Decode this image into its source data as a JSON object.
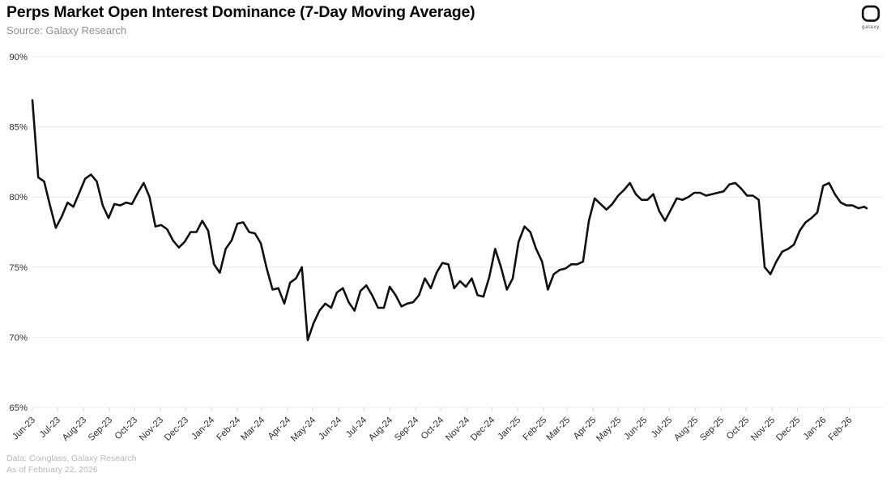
{
  "header": {
    "title": "Perps Market Open Interest Dominance (7-Day Moving Average)",
    "subtitle": "Source: Galaxy Research"
  },
  "logo": {
    "brand": "galaxy"
  },
  "footer": {
    "line1": "Data: Coinglass, Galaxy Research",
    "line2": "As of February 22, 2026"
  },
  "colors": {
    "line": "#101010",
    "grid": "#ececec",
    "tick": "#d8d8d8",
    "axis_text": "#2e2e2e"
  },
  "chart_data": {
    "type": "line",
    "title": "Perps Market Open Interest Dominance (7-Day Moving Average)",
    "xlabel": "",
    "ylabel": "",
    "ylim": [
      65,
      90
    ],
    "yticks": [
      "90%",
      "85%",
      "80%",
      "75%",
      "70%",
      "65%"
    ],
    "grid": true,
    "legend_position": "none",
    "x_month_labels": [
      "Jun-23",
      "Jul-23",
      "Aug-23",
      "Sep-23",
      "Oct-23",
      "Nov-23",
      "Dec-23",
      "Jan-24",
      "Feb-24",
      "Mar-24",
      "Apr-24",
      "May-24",
      "Jun-24",
      "Jul-24",
      "Aug-24",
      "Sep-24",
      "Oct-24",
      "Nov-24",
      "Dec-24",
      "Jan-25",
      "Feb-25",
      "Mar-25",
      "Apr-25",
      "May-25",
      "Jun-25",
      "Jul-25",
      "Aug-25",
      "Sep-25",
      "Oct-25",
      "Nov-25",
      "Dec-25",
      "Jan-26",
      "Feb-26"
    ],
    "series": [
      {
        "name": "Perps market open interest dominance, 7-day moving average (%)",
        "start_date": "2023-06-01",
        "end_date": "2026-02-22",
        "interval_days": 7,
        "values": [
          86.9,
          81.4,
          81.1,
          79.4,
          77.8,
          78.6,
          79.6,
          79.3,
          80.3,
          81.3,
          81.6,
          81.1,
          79.4,
          78.5,
          79.5,
          79.4,
          79.6,
          79.5,
          80.3,
          81.0,
          80.0,
          77.9,
          78.0,
          77.7,
          76.9,
          76.4,
          76.8,
          77.5,
          77.5,
          78.3,
          77.6,
          75.2,
          74.6,
          76.3,
          76.9,
          78.1,
          78.2,
          77.5,
          77.4,
          76.7,
          74.9,
          73.4,
          73.5,
          72.4,
          73.9,
          74.2,
          75.0,
          69.8,
          71.0,
          71.9,
          72.4,
          72.1,
          73.2,
          73.5,
          72.5,
          71.9,
          73.3,
          73.7,
          73.0,
          72.1,
          72.1,
          73.6,
          73.0,
          72.2,
          72.4,
          72.5,
          73.0,
          74.2,
          73.5,
          74.6,
          75.3,
          75.2,
          73.5,
          74.0,
          73.6,
          74.2,
          73.0,
          72.9,
          74.3,
          76.3,
          75.0,
          73.4,
          74.2,
          76.8,
          77.9,
          77.5,
          76.3,
          75.4,
          73.4,
          74.5,
          74.8,
          74.9,
          75.2,
          75.2,
          75.4,
          78.3,
          79.9,
          79.5,
          79.1,
          79.5,
          80.1,
          80.5,
          81.0,
          80.2,
          79.8,
          79.8,
          80.2,
          79.0,
          78.3,
          79.1,
          79.9,
          79.8,
          80.0,
          80.3,
          80.3,
          80.1,
          80.2,
          80.3,
          80.4,
          80.9,
          81.0,
          80.6,
          80.1,
          80.1,
          79.8,
          75.0,
          74.5,
          75.4,
          76.1,
          76.3,
          76.6,
          77.6,
          78.2,
          78.5,
          78.9,
          80.8,
          81.0,
          80.2,
          79.6,
          79.4,
          79.4,
          79.2,
          79.3,
          79.2
        ]
      }
    ]
  }
}
